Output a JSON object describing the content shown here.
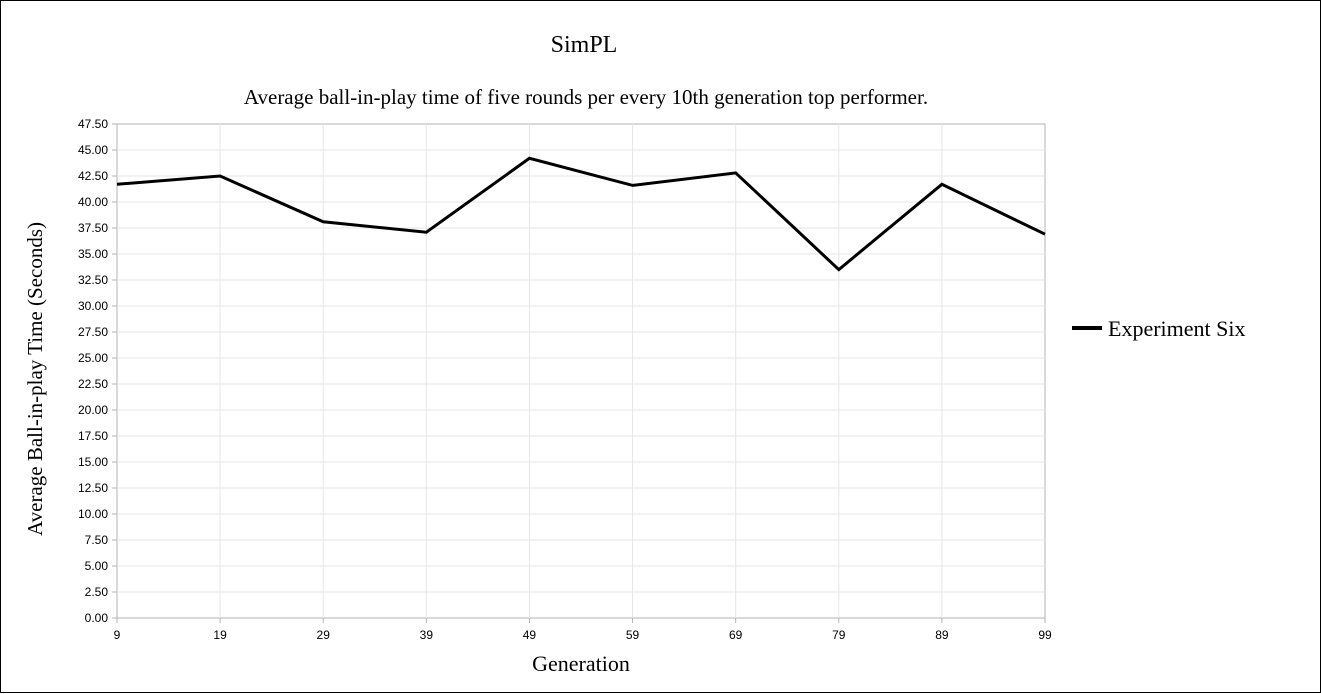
{
  "chart_data": {
    "type": "line",
    "title": "SimPL",
    "subtitle": "Average ball-in-play time of five rounds per every 10th generation top performer.",
    "xlabel": "Generation",
    "ylabel": "Average Ball-in-play Time (Seconds)",
    "categories": [
      "9",
      "19",
      "29",
      "39",
      "49",
      "59",
      "69",
      "79",
      "89",
      "99"
    ],
    "ylim": [
      0,
      47.5
    ],
    "ystep": 2.5,
    "grid": true,
    "legend_position": "right",
    "series": [
      {
        "name": "Experiment Six",
        "color": "#000000",
        "values": [
          41.7,
          42.5,
          38.1,
          37.1,
          44.2,
          41.6,
          42.8,
          33.5,
          41.7,
          36.9
        ]
      }
    ]
  }
}
